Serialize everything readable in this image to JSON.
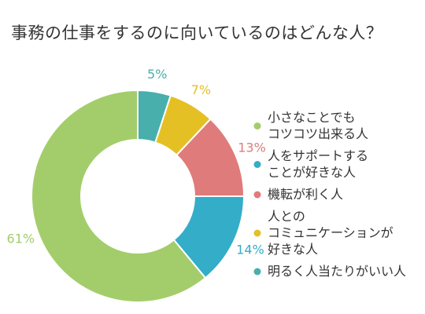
{
  "title": "事務の仕事をするのに向いているのはどんな人？",
  "chart_data": {
    "type": "pie",
    "donut": true,
    "legend_position": "right",
    "slices": [
      {
        "label": [
          "小さなことでも",
          "コツコツ出来る人"
        ],
        "value": 61,
        "pct_label": "61%",
        "color": "#a3cd6a"
      },
      {
        "label": [
          "人をサポートする",
          "ことが好きな人"
        ],
        "value": 14,
        "pct_label": "14%",
        "color": "#34adc9"
      },
      {
        "label": [
          "機転が利く人"
        ],
        "value": 13,
        "pct_label": "13%",
        "color": "#e07b7b"
      },
      {
        "label": [
          "人との",
          "コミュニケーションが",
          "好きな人"
        ],
        "value": 7,
        "pct_label": "7%",
        "color": "#e5c024"
      },
      {
        "label": [
          "明るく人当たりがいい人"
        ],
        "value": 5,
        "pct_label": "5%",
        "color": "#49afad"
      }
    ]
  }
}
